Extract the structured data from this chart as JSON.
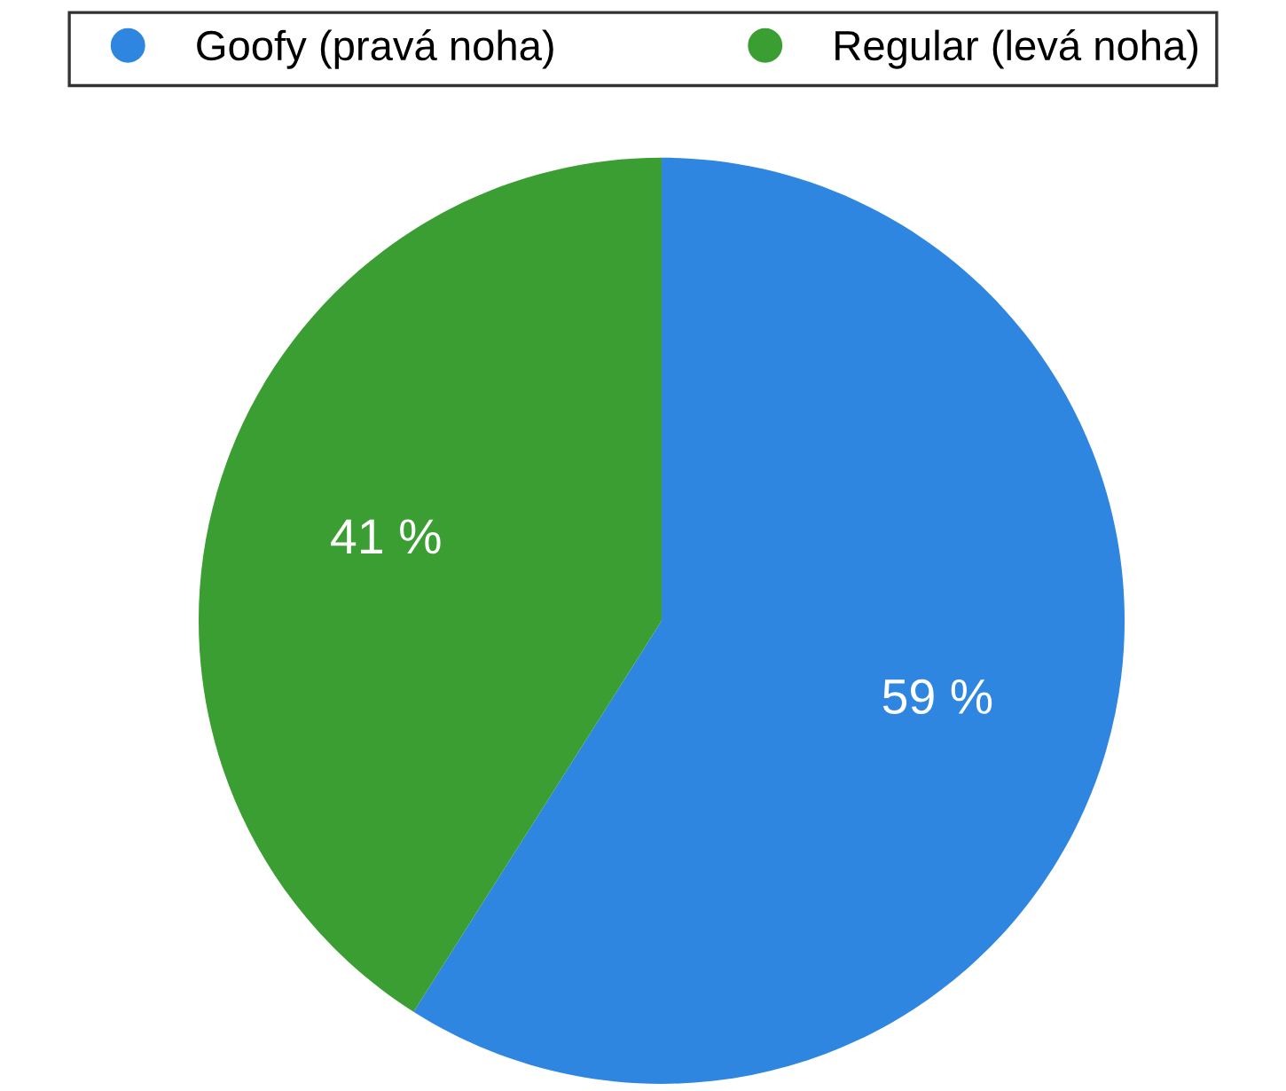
{
  "chart_data": {
    "type": "pie",
    "categories": [
      "Goofy (pravá noha)",
      "Regular (levá noha)"
    ],
    "values": [
      59,
      41
    ],
    "colors": [
      "#2f86e0",
      "#3a9e32"
    ],
    "value_labels": [
      "59 %",
      "41 %"
    ],
    "legend": "top"
  }
}
